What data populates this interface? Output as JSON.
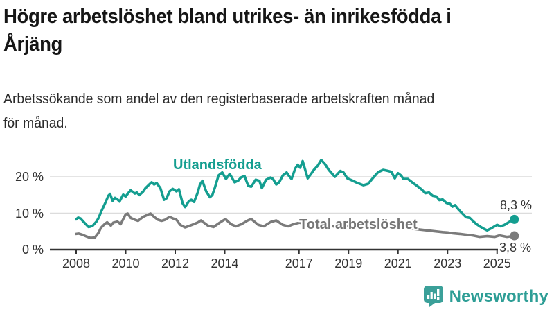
{
  "header": {
    "title_line1": "Högre arbetslöshet bland utrikes- än inrikesfödda i",
    "title_line2": "Årjäng",
    "subtitle_line1": "Arbetssökande som andel av den registerbaserade arbetskraften månad",
    "subtitle_line2": "för månad."
  },
  "footer": {
    "brand": "Newsworthy",
    "brand_color": "#2e9e96"
  },
  "chart_data": {
    "type": "line",
    "title": "Högre arbetslöshet bland utrikes- än inrikesfödda i Årjäng",
    "subtitle": "Arbetssökande som andel av den registerbaserade arbetskraften månad för månad.",
    "unit": "%",
    "grid": "horizontal",
    "legend_position": "inline-labels",
    "x_domain": [
      2008,
      2025.75
    ],
    "ylim": [
      0,
      26
    ],
    "x_ticks": [
      2008,
      2010,
      2012,
      2014,
      2017,
      2019,
      2021,
      2023,
      2025
    ],
    "y_ticks": [
      {
        "value": 0,
        "label": "0 %"
      },
      {
        "value": 10,
        "label": "10 %"
      },
      {
        "value": 20,
        "label": "20 %"
      }
    ],
    "colors": {
      "axis": "#333333",
      "grid": "#dcdcdc"
    },
    "series": [
      {
        "name": "Utlandsfödda",
        "color": "#149e90",
        "end_label": "8,3 %",
        "last_value": 8.3,
        "points": [
          [
            2008.0,
            8.3
          ],
          [
            2008.08,
            8.8
          ],
          [
            2008.17,
            8.6
          ],
          [
            2008.33,
            7.4
          ],
          [
            2008.5,
            6.2
          ],
          [
            2008.58,
            6.3
          ],
          [
            2008.67,
            6.6
          ],
          [
            2008.83,
            7.8
          ],
          [
            2008.92,
            8.9
          ],
          [
            2009.0,
            10.3
          ],
          [
            2009.1,
            11.7
          ],
          [
            2009.2,
            13.2
          ],
          [
            2009.3,
            14.8
          ],
          [
            2009.37,
            15.3
          ],
          [
            2009.47,
            13.4
          ],
          [
            2009.57,
            14.2
          ],
          [
            2009.67,
            13.8
          ],
          [
            2009.75,
            13.2
          ],
          [
            2009.9,
            15.1
          ],
          [
            2010.0,
            14.6
          ],
          [
            2010.1,
            15.5
          ],
          [
            2010.2,
            16.3
          ],
          [
            2010.37,
            15.4
          ],
          [
            2010.45,
            15.7
          ],
          [
            2010.55,
            15.0
          ],
          [
            2010.7,
            15.9
          ],
          [
            2010.8,
            16.9
          ],
          [
            2010.95,
            17.9
          ],
          [
            2011.05,
            18.5
          ],
          [
            2011.15,
            17.9
          ],
          [
            2011.25,
            18.3
          ],
          [
            2011.4,
            16.9
          ],
          [
            2011.55,
            13.7
          ],
          [
            2011.65,
            14.1
          ],
          [
            2011.77,
            16.0
          ],
          [
            2011.9,
            16.7
          ],
          [
            2012.05,
            16.0
          ],
          [
            2012.15,
            16.6
          ],
          [
            2012.3,
            12.7
          ],
          [
            2012.4,
            11.7
          ],
          [
            2012.55,
            13.3
          ],
          [
            2012.65,
            13.7
          ],
          [
            2012.76,
            13.1
          ],
          [
            2012.9,
            15.5
          ],
          [
            2013.0,
            17.9
          ],
          [
            2013.1,
            18.9
          ],
          [
            2013.25,
            16.0
          ],
          [
            2013.4,
            14.4
          ],
          [
            2013.5,
            15.0
          ],
          [
            2013.6,
            17.0
          ],
          [
            2013.75,
            20.4
          ],
          [
            2013.9,
            21.2
          ],
          [
            2014.05,
            19.4
          ],
          [
            2014.2,
            20.8
          ],
          [
            2014.4,
            18.5
          ],
          [
            2014.55,
            19.0
          ],
          [
            2014.65,
            19.8
          ],
          [
            2014.8,
            20.2
          ],
          [
            2014.95,
            17.5
          ],
          [
            2015.07,
            17.3
          ],
          [
            2015.25,
            19.2
          ],
          [
            2015.4,
            18.9
          ],
          [
            2015.5,
            16.9
          ],
          [
            2015.67,
            19.2
          ],
          [
            2015.85,
            19.8
          ],
          [
            2015.95,
            19.4
          ],
          [
            2016.08,
            17.9
          ],
          [
            2016.2,
            18.5
          ],
          [
            2016.35,
            20.4
          ],
          [
            2016.5,
            21.2
          ],
          [
            2016.6,
            20.2
          ],
          [
            2016.7,
            19.4
          ],
          [
            2016.85,
            22.3
          ],
          [
            2016.95,
            23.3
          ],
          [
            2017.05,
            22.5
          ],
          [
            2017.15,
            24.3
          ],
          [
            2017.35,
            19.6
          ],
          [
            2017.5,
            20.9
          ],
          [
            2017.6,
            21.9
          ],
          [
            2017.75,
            23.0
          ],
          [
            2017.9,
            24.6
          ],
          [
            2018.05,
            23.5
          ],
          [
            2018.2,
            21.9
          ],
          [
            2018.45,
            20.0
          ],
          [
            2018.67,
            21.6
          ],
          [
            2018.8,
            21.2
          ],
          [
            2018.95,
            19.6
          ],
          [
            2019.15,
            19.0
          ],
          [
            2019.3,
            18.5
          ],
          [
            2019.45,
            18.1
          ],
          [
            2019.6,
            17.7
          ],
          [
            2019.8,
            18.1
          ],
          [
            2020.0,
            19.8
          ],
          [
            2020.2,
            21.3
          ],
          [
            2020.4,
            21.9
          ],
          [
            2020.55,
            21.7
          ],
          [
            2020.73,
            21.4
          ],
          [
            2020.87,
            19.6
          ],
          [
            2021.0,
            21.0
          ],
          [
            2021.12,
            20.4
          ],
          [
            2021.22,
            19.4
          ],
          [
            2021.4,
            19.4
          ],
          [
            2021.57,
            18.5
          ],
          [
            2021.77,
            17.5
          ],
          [
            2021.96,
            16.5
          ],
          [
            2022.1,
            15.5
          ],
          [
            2022.25,
            15.7
          ],
          [
            2022.4,
            14.8
          ],
          [
            2022.55,
            14.6
          ],
          [
            2022.67,
            13.6
          ],
          [
            2022.8,
            13.8
          ],
          [
            2022.96,
            12.8
          ],
          [
            2023.1,
            12.6
          ],
          [
            2023.2,
            11.8
          ],
          [
            2023.3,
            12.2
          ],
          [
            2023.46,
            10.9
          ],
          [
            2023.6,
            9.9
          ],
          [
            2023.75,
            8.9
          ],
          [
            2023.9,
            8.7
          ],
          [
            2024.05,
            7.7
          ],
          [
            2024.17,
            7.0
          ],
          [
            2024.3,
            6.4
          ],
          [
            2024.45,
            5.8
          ],
          [
            2024.6,
            5.3
          ],
          [
            2024.75,
            5.8
          ],
          [
            2024.9,
            6.4
          ],
          [
            2025.0,
            6.8
          ],
          [
            2025.15,
            6.4
          ],
          [
            2025.3,
            6.8
          ],
          [
            2025.45,
            7.4
          ],
          [
            2025.58,
            8.0
          ],
          [
            2025.7,
            8.3
          ]
        ]
      },
      {
        "name": "Total arbetslöshet",
        "color": "#7b7b7b",
        "end_label": "3,8 %",
        "last_value": 3.8,
        "points": [
          [
            2008.0,
            4.3
          ],
          [
            2008.1,
            4.4
          ],
          [
            2008.25,
            4.1
          ],
          [
            2008.42,
            3.6
          ],
          [
            2008.58,
            3.2
          ],
          [
            2008.75,
            3.3
          ],
          [
            2008.9,
            4.6
          ],
          [
            2009.0,
            6.0
          ],
          [
            2009.15,
            7.0
          ],
          [
            2009.25,
            7.5
          ],
          [
            2009.4,
            6.6
          ],
          [
            2009.5,
            7.4
          ],
          [
            2009.67,
            7.7
          ],
          [
            2009.8,
            7.0
          ],
          [
            2010.0,
            9.7
          ],
          [
            2010.08,
            9.9
          ],
          [
            2010.2,
            8.7
          ],
          [
            2010.37,
            8.2
          ],
          [
            2010.5,
            7.9
          ],
          [
            2010.7,
            9.0
          ],
          [
            2010.87,
            9.5
          ],
          [
            2011.0,
            9.9
          ],
          [
            2011.15,
            9.0
          ],
          [
            2011.3,
            8.2
          ],
          [
            2011.45,
            7.9
          ],
          [
            2011.6,
            8.2
          ],
          [
            2011.77,
            9.0
          ],
          [
            2011.9,
            8.6
          ],
          [
            2012.05,
            8.2
          ],
          [
            2012.2,
            6.8
          ],
          [
            2012.4,
            6.1
          ],
          [
            2012.68,
            6.8
          ],
          [
            2012.9,
            7.4
          ],
          [
            2013.04,
            8.0
          ],
          [
            2013.32,
            6.6
          ],
          [
            2013.55,
            6.2
          ],
          [
            2013.8,
            7.4
          ],
          [
            2014.03,
            8.4
          ],
          [
            2014.25,
            7.0
          ],
          [
            2014.45,
            6.4
          ],
          [
            2014.68,
            7.0
          ],
          [
            2014.93,
            8.0
          ],
          [
            2015.07,
            8.4
          ],
          [
            2015.35,
            6.8
          ],
          [
            2015.58,
            6.4
          ],
          [
            2015.86,
            7.6
          ],
          [
            2016.08,
            8.0
          ],
          [
            2016.34,
            6.8
          ],
          [
            2016.56,
            6.4
          ],
          [
            2016.78,
            7.0
          ],
          [
            2017.03,
            7.4
          ],
          [
            2017.5,
            6.5
          ],
          [
            2018.0,
            7.0
          ],
          [
            2018.5,
            6.2
          ],
          [
            2019.0,
            6.6
          ],
          [
            2019.5,
            5.9
          ],
          [
            2020.0,
            6.3
          ],
          [
            2020.4,
            7.0
          ],
          [
            2020.8,
            6.6
          ],
          [
            2021.0,
            6.4
          ],
          [
            2021.5,
            5.8
          ],
          [
            2022.0,
            5.4
          ],
          [
            2022.55,
            5.0
          ],
          [
            2022.8,
            4.8
          ],
          [
            2023.0,
            4.7
          ],
          [
            2023.2,
            4.5
          ],
          [
            2023.5,
            4.3
          ],
          [
            2023.75,
            4.1
          ],
          [
            2024.0,
            3.9
          ],
          [
            2024.3,
            3.5
          ],
          [
            2024.6,
            3.7
          ],
          [
            2024.9,
            3.5
          ],
          [
            2025.1,
            3.9
          ],
          [
            2025.4,
            3.5
          ],
          [
            2025.7,
            3.8
          ]
        ]
      }
    ]
  }
}
